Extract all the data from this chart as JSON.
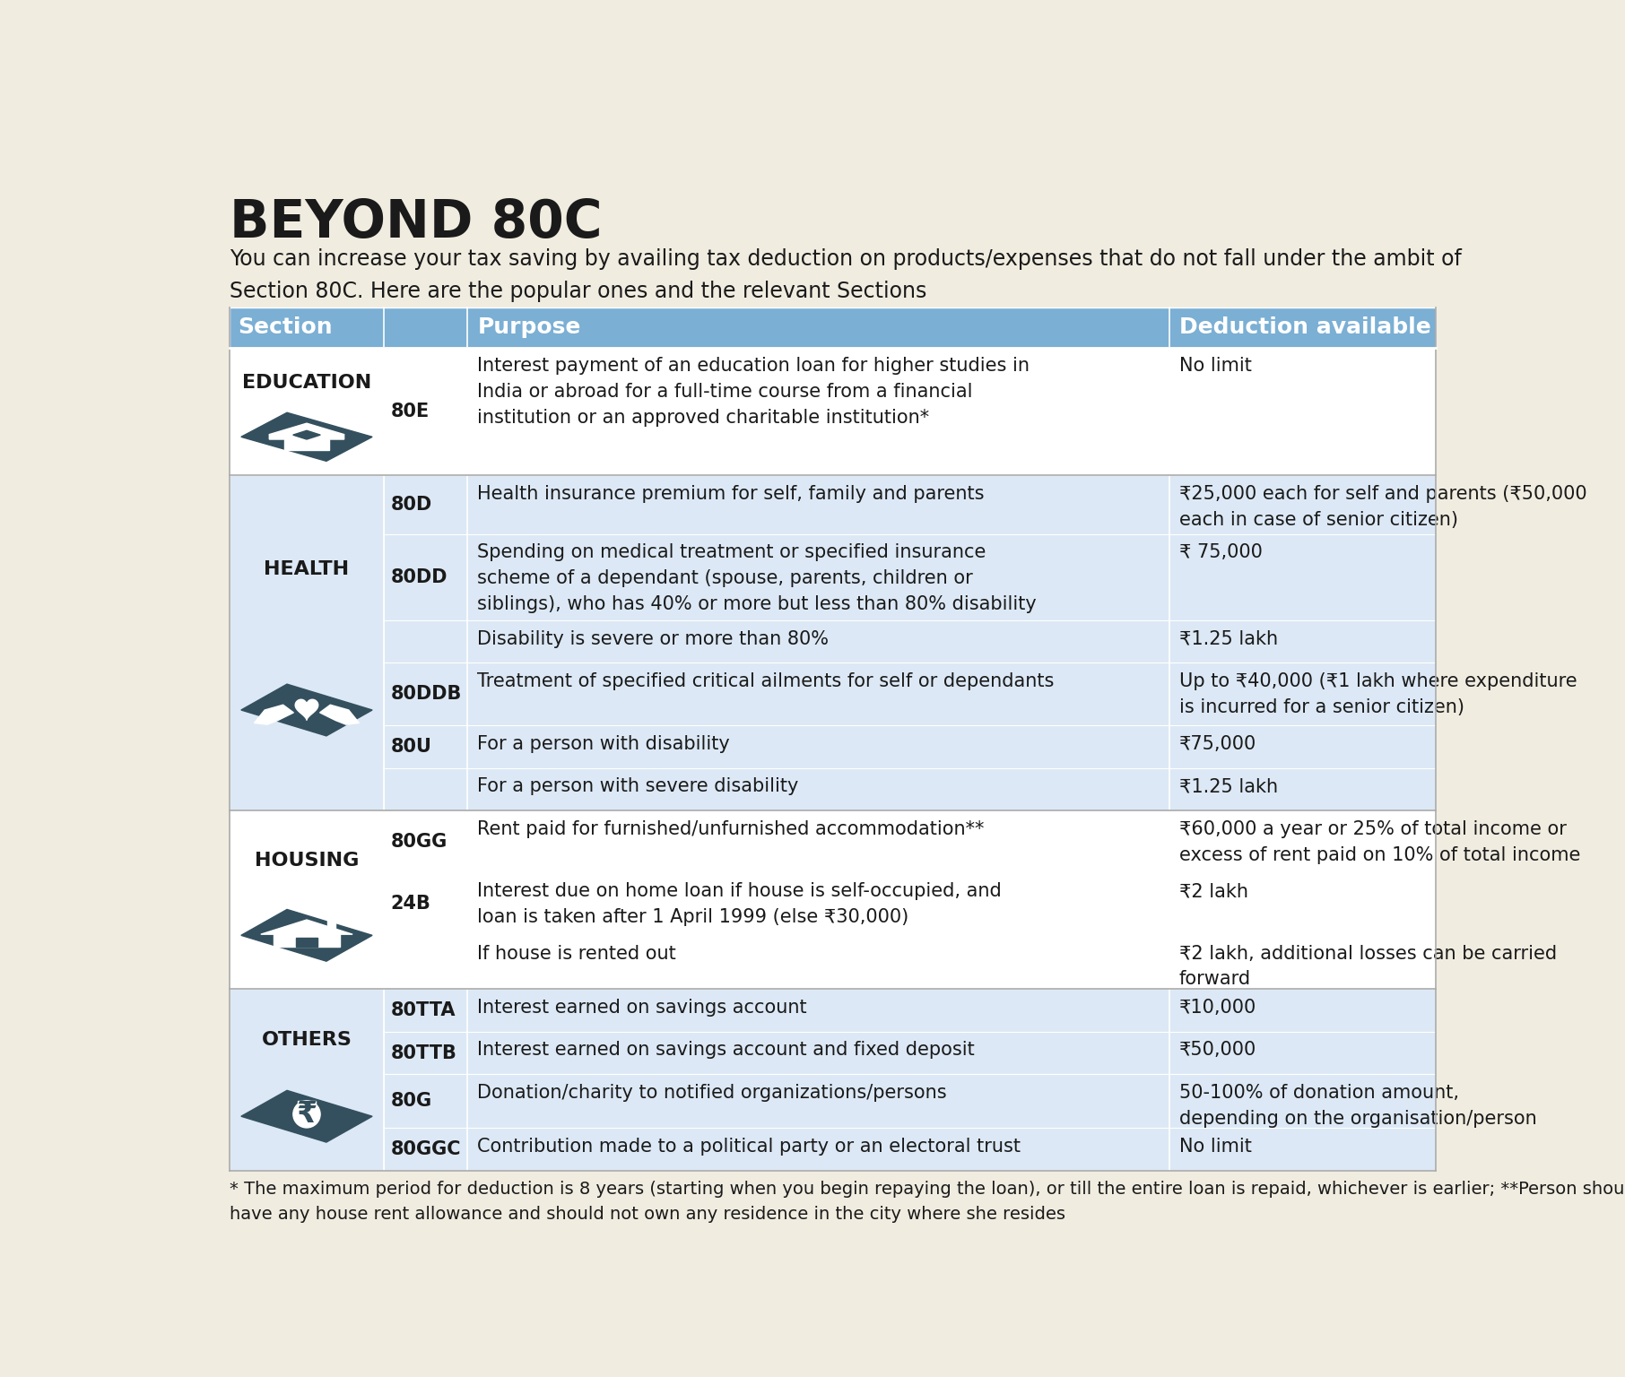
{
  "title": "BEYOND 80C",
  "subtitle": "You can increase your tax saving by availing tax deduction on products/expenses that do not fall under the ambit of\nSection 80C. Here are the popular ones and the relevant Sections",
  "bg_color": "#f0ece0",
  "header_color": "#7bafd4",
  "header_text_color": "#ffffff",
  "row_color_light": "#dce8f5",
  "row_color_white": "#ffffff",
  "col_headers": [
    "Section",
    "Purpose",
    "Deduction available"
  ],
  "footnote": "* The maximum period for deduction is 8 years (starting when you begin repaying the loan), or till the entire loan is repaid, whichever is earlier; **Person should not\nhave any house rent allowance and should not own any residence in the city where she resides",
  "icon_color": "#34505e",
  "rows": [
    {
      "category": "EDUCATION",
      "section_code": "80E",
      "purpose": "Interest payment of an education loan for higher studies in\nIndia or abroad for a full-time course from a financial\ninstitution or an approved charitable institution*",
      "deduction": "No limit",
      "row_shade": "white"
    },
    {
      "category": "HEALTH",
      "section_code": "80D",
      "purpose": "Health insurance premium for self, family and parents",
      "deduction": "₹25,000 each for self and parents (₹50,000\neach in case of senior citizen)",
      "row_shade": "light"
    },
    {
      "category": "",
      "section_code": "80DD",
      "purpose": "Spending on medical treatment or specified insurance\nscheme of a dependant (spouse, parents, children or\nsiblings), who has 40% or more but less than 80% disability",
      "deduction": "₹ 75,000",
      "row_shade": "light"
    },
    {
      "category": "",
      "section_code": "",
      "purpose": "Disability is severe or more than 80%",
      "deduction": "₹1.25 lakh",
      "row_shade": "light"
    },
    {
      "category": "",
      "section_code": "80DDB",
      "purpose": "Treatment of specified critical ailments for self or dependants",
      "deduction": "Up to ₹40,000 (₹1 lakh where expenditure\nis incurred for a senior citizen)",
      "row_shade": "light"
    },
    {
      "category": "",
      "section_code": "80U",
      "purpose": "For a person with disability",
      "deduction": "₹75,000",
      "row_shade": "light"
    },
    {
      "category": "",
      "section_code": "",
      "purpose": "For a person with severe disability",
      "deduction": "₹1.25 lakh",
      "row_shade": "light"
    },
    {
      "category": "HOUSING",
      "section_code": "80GG",
      "purpose": "Rent paid for furnished/unfurnished accommodation**",
      "deduction": "₹60,000 a year or 25% of total income or\nexcess of rent paid on 10% of total income",
      "row_shade": "white"
    },
    {
      "category": "",
      "section_code": "24B",
      "purpose": "Interest due on home loan if house is self-occupied, and\nloan is taken after 1 April 1999 (else ₹30,000)",
      "deduction": "₹2 lakh",
      "row_shade": "white"
    },
    {
      "category": "",
      "section_code": "",
      "purpose": "If house is rented out",
      "deduction": "₹2 lakh, additional losses can be carried\nforward",
      "row_shade": "white"
    },
    {
      "category": "OTHERS",
      "section_code": "80TTA",
      "purpose": "Interest earned on savings account",
      "deduction": "₹10,000",
      "row_shade": "light"
    },
    {
      "category": "",
      "section_code": "80TTB",
      "purpose": "Interest earned on savings account and fixed deposit",
      "deduction": "₹50,000",
      "row_shade": "light"
    },
    {
      "category": "",
      "section_code": "80G",
      "purpose": "Donation/charity to notified organizations/persons",
      "deduction": "50-100% of donation amount,\ndepending on the organisation/person",
      "row_shade": "light"
    },
    {
      "category": "",
      "section_code": "80GGC",
      "purpose": "Contribution made to a political party or an electoral trust",
      "deduction": "No limit",
      "row_shade": "light"
    }
  ],
  "category_groups": [
    {
      "start": 0,
      "end": 0,
      "label": "EDUCATION",
      "icon": "education",
      "shade": "white"
    },
    {
      "start": 1,
      "end": 6,
      "label": "HEALTH",
      "icon": "health",
      "shade": "light"
    },
    {
      "start": 7,
      "end": 9,
      "label": "HOUSING",
      "icon": "housing",
      "shade": "white"
    },
    {
      "start": 10,
      "end": 13,
      "label": "OTHERS",
      "icon": "others",
      "shade": "light"
    }
  ]
}
